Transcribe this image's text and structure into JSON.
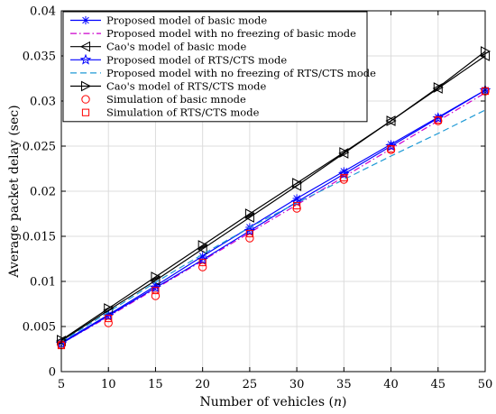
{
  "chart_data": {
    "type": "line",
    "xlabel": "Number of vehicles (",
    "xlabel_var": "n",
    "xlabel_suffix": ")",
    "ylabel": "Average packet delay (sec)",
    "xlim": [
      5,
      50
    ],
    "ylim": [
      0,
      0.04
    ],
    "xticks": [
      5,
      10,
      15,
      20,
      25,
      30,
      35,
      40,
      45,
      50
    ],
    "yticks": [
      0,
      0.005,
      0.01,
      0.015,
      0.02,
      0.025,
      0.03,
      0.035,
      0.04
    ],
    "ytick_labels": [
      "0",
      "0.005",
      "0.01",
      "0.015",
      "0.02",
      "0.025",
      "0.03",
      "0.035",
      "0.04"
    ],
    "grid": true,
    "legend_position": "top-left",
    "x": [
      5,
      10,
      15,
      20,
      25,
      30,
      35,
      40,
      45,
      50
    ],
    "series": [
      {
        "name": "Proposed model of basic mode",
        "color": "#0000ff",
        "line": "solid",
        "marker": "asterisk",
        "values": [
          0.0032,
          0.0063,
          0.0095,
          0.0128,
          0.016,
          0.0192,
          0.0222,
          0.0252,
          0.0282,
          0.0312
        ]
      },
      {
        "name": "Proposed model with no freezing of basic mode",
        "color": "#cc00cc",
        "line": "dashdot",
        "marker": "none",
        "values": [
          0.0031,
          0.0061,
          0.0092,
          0.0123,
          0.0154,
          0.0185,
          0.0216,
          0.0247,
          0.0278,
          0.0309
        ]
      },
      {
        "name": "Cao's model of basic mode",
        "color": "#000000",
        "line": "solid",
        "marker": "triangle-left",
        "values": [
          0.0034,
          0.0068,
          0.0101,
          0.0136,
          0.0171,
          0.0206,
          0.0242,
          0.0278,
          0.0314,
          0.035
        ]
      },
      {
        "name": "Proposed model of RTS/CTS mode",
        "color": "#0000ff",
        "line": "solid",
        "marker": "star",
        "values": [
          0.0031,
          0.0062,
          0.0093,
          0.0124,
          0.0156,
          0.0188,
          0.0219,
          0.025,
          0.0281,
          0.0312
        ]
      },
      {
        "name": "Proposed model with no freezing of RTS/CTS mode",
        "color": "#1f9ad6",
        "line": "dashed",
        "marker": "none",
        "values": [
          0.0033,
          0.0066,
          0.0099,
          0.013,
          0.016,
          0.0187,
          0.0213,
          0.0239,
          0.0264,
          0.029
        ]
      },
      {
        "name": "Cao's model of RTS/CTS mode",
        "color": "#000000",
        "line": "solid",
        "marker": "triangle-right",
        "values": [
          0.0035,
          0.007,
          0.0105,
          0.014,
          0.0175,
          0.0209,
          0.0243,
          0.0278,
          0.0315,
          0.0355
        ]
      },
      {
        "name": "Simulation of basic mnode",
        "color": "#ff0000",
        "line": "none",
        "marker": "circle",
        "values": [
          0.003,
          0.0054,
          0.0084,
          0.0116,
          0.0148,
          0.0181,
          0.0213,
          0.0246,
          0.0278,
          0.0311
        ]
      },
      {
        "name": "Simulation of RTS/CTS mode",
        "color": "#ff0000",
        "line": "none",
        "marker": "square",
        "values": [
          0.0029,
          0.0059,
          0.009,
          0.0121,
          0.0153,
          0.0184,
          0.0215,
          0.0247,
          0.0279,
          0.0311
        ]
      }
    ]
  }
}
